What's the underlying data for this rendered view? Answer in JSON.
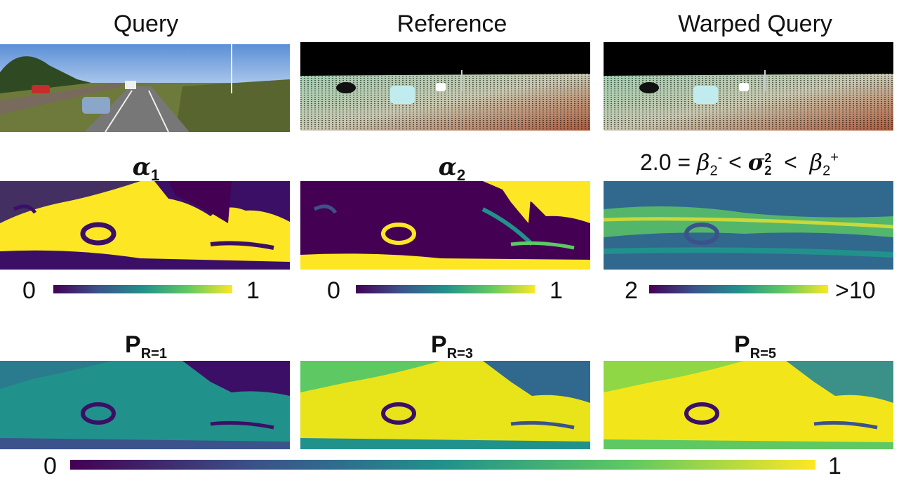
{
  "row1": {
    "query_title": "Query",
    "reference_title": "Reference",
    "warped_title": "Warped Query"
  },
  "row2": {
    "alpha1": {
      "symbol": "α",
      "sub": "1"
    },
    "alpha2": {
      "symbol": "α",
      "sub": "2"
    },
    "sigma_caption": {
      "lhs": "2.0 = ",
      "beta_minus": "β",
      "beta_minus_sub": "2",
      "beta_minus_sup": "-",
      "lt1": " < ",
      "sigma": "σ",
      "sigma_sub": "2",
      "sigma_sup": "2",
      "lt2": "  <  ",
      "beta_plus": "β",
      "beta_plus_sub": "2",
      "beta_plus_sup": "+"
    },
    "colorbars": [
      {
        "min": "0",
        "max": "1"
      },
      {
        "min": "0",
        "max": "1"
      },
      {
        "min": "2",
        "max": ">10"
      }
    ]
  },
  "row3": {
    "p1": {
      "symbol": "P",
      "sub": "R=1"
    },
    "p3": {
      "symbol": "P",
      "sub": "R=3"
    },
    "p5": {
      "symbol": "P",
      "sub": "R=5"
    }
  },
  "bottom_colorbar": {
    "min": "0",
    "max": "1"
  },
  "colormap": [
    "#440154",
    "#3b528b",
    "#21918c",
    "#5ec962",
    "#fde725"
  ]
}
